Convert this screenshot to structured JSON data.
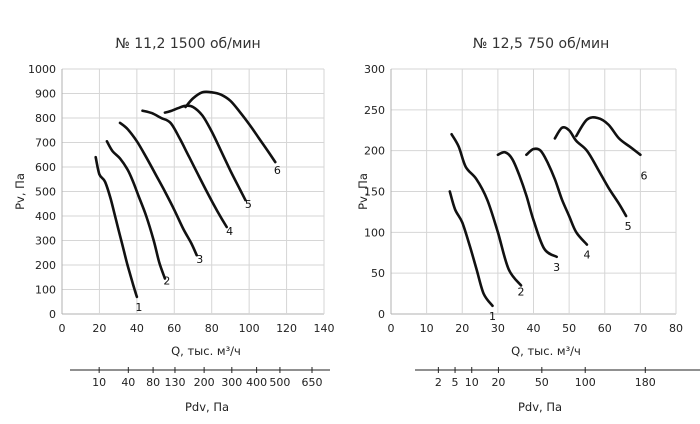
{
  "chart_data": [
    {
      "type": "line",
      "title": "№ 11,2 1500 об/мин",
      "xlabel": "Q, тыс. м³/ч",
      "ylabel": "Pv, Па",
      "xlim": [
        0,
        140
      ],
      "ylim": [
        0,
        1000
      ],
      "xticks": [
        0,
        20,
        40,
        60,
        80,
        100,
        120,
        140
      ],
      "yticks": [
        0,
        100,
        200,
        300,
        400,
        500,
        600,
        700,
        800,
        900,
        1000
      ],
      "series": [
        {
          "name": "1",
          "x": [
            18,
            20,
            23,
            26,
            29,
            32,
            35,
            38,
            40
          ],
          "y": [
            640,
            570,
            540,
            470,
            380,
            290,
            200,
            120,
            70
          ]
        },
        {
          "name": "2",
          "x": [
            24,
            27,
            31,
            35,
            38,
            41,
            45,
            49,
            52,
            55
          ],
          "y": [
            705,
            665,
            635,
            590,
            540,
            480,
            400,
            300,
            210,
            145
          ]
        },
        {
          "name": "3",
          "x": [
            31,
            35,
            40,
            45,
            50,
            55,
            60,
            65,
            69,
            72
          ],
          "y": [
            780,
            755,
            705,
            640,
            570,
            500,
            425,
            345,
            290,
            240
          ]
        },
        {
          "name": "4",
          "x": [
            43,
            48,
            53,
            58,
            63,
            68,
            73,
            78,
            83,
            88
          ],
          "y": [
            830,
            820,
            800,
            780,
            715,
            640,
            565,
            490,
            420,
            355
          ]
        },
        {
          "name": "5",
          "x": [
            55,
            58,
            62,
            66,
            70,
            75,
            80,
            85,
            90,
            95,
            98
          ],
          "y": [
            822,
            828,
            840,
            850,
            845,
            810,
            745,
            665,
            585,
            510,
            465
          ]
        },
        {
          "name": "6",
          "x": [
            66,
            70,
            75,
            80,
            85,
            90,
            95,
            100,
            105,
            110,
            114
          ],
          "y": [
            845,
            880,
            905,
            905,
            895,
            870,
            825,
            775,
            720,
            665,
            620
          ]
        }
      ],
      "curve_labels": [
        "1",
        "2",
        "3",
        "4",
        "5",
        "6"
      ],
      "pdv_axis": {
        "label": "Pdv, Па",
        "ticks": [
          {
            "value": "10",
            "x": 20
          },
          {
            "value": "40",
            "x": 40
          },
          {
            "value": "80",
            "x": 57
          },
          {
            "value": "130",
            "x": 72
          },
          {
            "value": "200",
            "x": 92
          },
          {
            "value": "300",
            "x": 111
          },
          {
            "value": "400",
            "x": 128
          },
          {
            "value": "500",
            "x": 144
          },
          {
            "value": "650",
            "x": 166
          }
        ]
      }
    },
    {
      "type": "line",
      "title": "№ 12,5  750 об/мин",
      "xlabel": "Q, тыс. м³/ч",
      "ylabel": "Pv, Па",
      "xlim": [
        0,
        80
      ],
      "ylim": [
        0,
        300
      ],
      "xticks": [
        0,
        10,
        20,
        30,
        40,
        50,
        60,
        70,
        80
      ],
      "yticks": [
        0,
        50,
        100,
        150,
        200,
        250,
        300
      ],
      "series": [
        {
          "name": "1",
          "x": [
            16.5,
            18,
            20,
            22,
            24,
            26,
            28.5
          ],
          "y": [
            150,
            128,
            112,
            85,
            55,
            25,
            10
          ]
        },
        {
          "name": "2",
          "x": [
            17,
            19,
            21,
            24,
            27,
            30,
            33,
            36.5
          ],
          "y": [
            220,
            205,
            180,
            165,
            140,
            100,
            55,
            35
          ]
        },
        {
          "name": "3",
          "x": [
            30,
            32,
            34,
            36,
            38,
            40,
            43,
            46.5
          ],
          "y": [
            195,
            198,
            190,
            170,
            145,
            115,
            80,
            70
          ]
        },
        {
          "name": "4",
          "x": [
            38,
            40,
            42,
            44,
            46,
            48,
            50,
            52,
            55
          ],
          "y": [
            195,
            202,
            200,
            185,
            165,
            140,
            120,
            100,
            85
          ]
        },
        {
          "name": "5",
          "x": [
            46,
            48,
            50,
            52,
            55,
            58,
            61,
            64,
            66
          ],
          "y": [
            215,
            228,
            225,
            212,
            200,
            178,
            155,
            135,
            120
          ]
        },
        {
          "name": "6",
          "x": [
            52,
            55,
            58,
            61,
            64,
            67,
            70
          ],
          "y": [
            218,
            238,
            240,
            232,
            215,
            205,
            195
          ]
        }
      ],
      "curve_labels": [
        "1",
        "2",
        "3",
        "4",
        "5",
        "6"
      ],
      "pdv_axis": {
        "label": "Pdv, Па",
        "ticks": [
          {
            "value": "2",
            "x": 7
          },
          {
            "value": "5",
            "x": 12
          },
          {
            "value": "10",
            "x": 17
          },
          {
            "value": "20",
            "x": 25
          },
          {
            "value": "50",
            "x": 38
          },
          {
            "value": "100",
            "x": 51
          },
          {
            "value": "180",
            "x": 69
          }
        ]
      }
    }
  ]
}
